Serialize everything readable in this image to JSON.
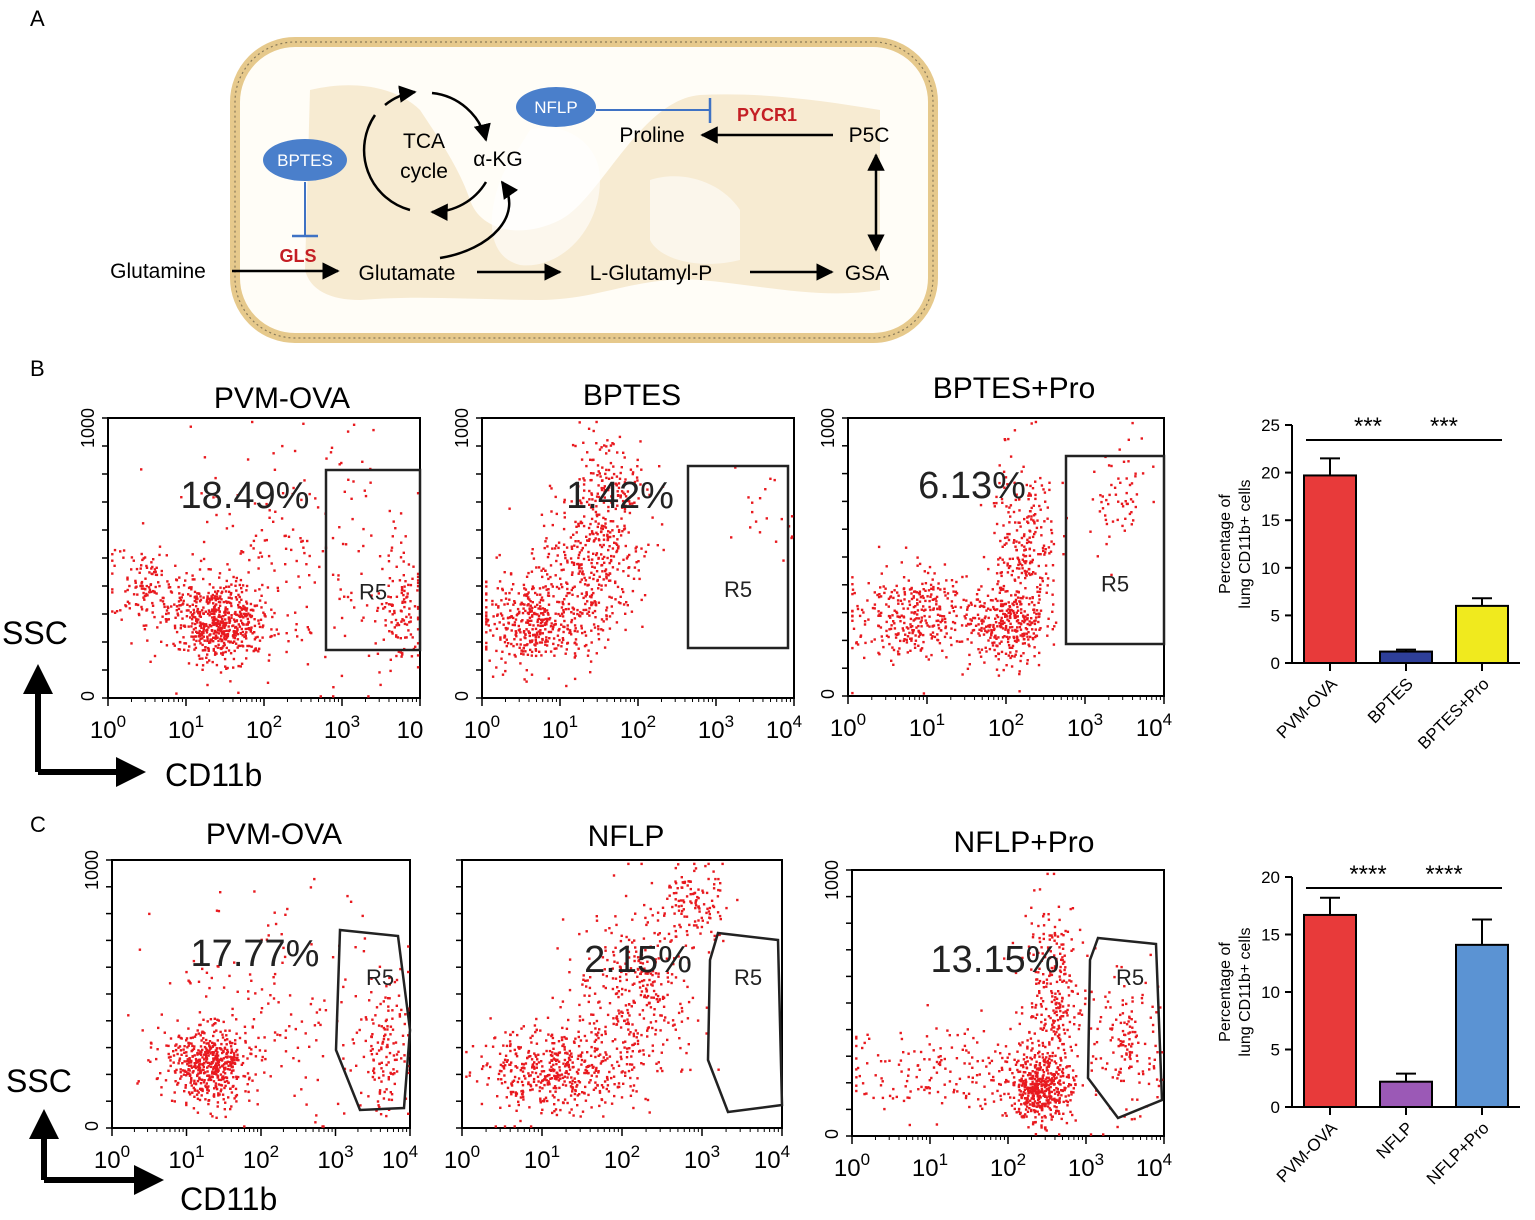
{
  "panel_labels": {
    "a": "A",
    "b": "B",
    "c": "C"
  },
  "colors": {
    "dot": "#e8191f",
    "inhibitor": "#3f72c4",
    "enzyme": "#c41e24",
    "mito_fill": "#f3e2c2",
    "bar_red": "#e83a3a",
    "bar_blue": "#2e3f99",
    "bar_yellow": "#f0ea1e",
    "bar_purple": "#9b59b6",
    "bar_lightblue": "#5b93d3"
  },
  "pathway": {
    "tca_line1": "TCA",
    "tca_line2": "cycle",
    "akg": "α-KG",
    "bptes": "BPTES",
    "nflp": "NFLP",
    "gls": "GLS",
    "pycr1": "PYCR1",
    "proline": "Proline",
    "p5c": "P5C",
    "glutamine": "Glutamine",
    "glutamate": "Glutamate",
    "lglutamyl": "L-Glutamyl-P",
    "gsa": "GSA"
  },
  "flow_b": [
    {
      "title": "PVM-OVA",
      "percent": "18.49%",
      "gate": "R5",
      "y_top": "1000",
      "y_zero": "0",
      "x_ticks": [
        "10",
        "10",
        "10",
        "10",
        "10"
      ],
      "x_exps": [
        "0",
        "1",
        "2",
        "3",
        ""
      ]
    },
    {
      "title": "BPTES",
      "percent": "1.42%",
      "gate": "R5",
      "y_top": "1000",
      "y_zero": "0",
      "x_ticks": [
        "10",
        "10",
        "10",
        "10",
        "10"
      ],
      "x_exps": [
        "0",
        "1",
        "2",
        "3",
        "4"
      ]
    },
    {
      "title": "BPTES+Pro",
      "percent": "6.13%",
      "gate": "R5",
      "y_top": "1000",
      "y_zero": "0",
      "x_ticks": [
        "10",
        "10",
        "10",
        "10",
        "10"
      ],
      "x_exps": [
        "0",
        "1",
        "2",
        "3",
        "4"
      ]
    }
  ],
  "flow_c": [
    {
      "title": "PVM-OVA",
      "percent": "17.77%",
      "gate": "R5",
      "y_top": "1000",
      "y_zero": "0",
      "x_ticks": [
        "10",
        "10",
        "10",
        "10",
        "10"
      ],
      "x_exps": [
        "0",
        "1",
        "2",
        "3",
        "4"
      ]
    },
    {
      "title": "NFLP",
      "percent": "2.15%",
      "gate": "R5",
      "y_top": "",
      "y_zero": "",
      "x_ticks": [
        "10",
        "10",
        "10",
        "10",
        "10"
      ],
      "x_exps": [
        "0",
        "1",
        "2",
        "3",
        "4"
      ]
    },
    {
      "title": "NFLP+Pro",
      "percent": "13.15%",
      "gate": "R5",
      "y_top": "1000",
      "y_zero": "0",
      "x_ticks": [
        "10",
        "10",
        "10",
        "10",
        "10"
      ],
      "x_exps": [
        "0",
        "1",
        "2",
        "3",
        "4"
      ]
    }
  ],
  "axes_labels": {
    "ssc": "SSC",
    "cd11b": "CD11b"
  },
  "chart_data": [
    {
      "type": "bar",
      "title": "",
      "ylabel": "Percentage of lung CD11b+ cells",
      "ylabel_line1": "Percentage of",
      "ylabel_line2": "lung CD11b+ cells",
      "xlabel": "",
      "ylim": [
        0,
        25
      ],
      "yticks": [
        0,
        5,
        10,
        15,
        20,
        25
      ],
      "categories": [
        "PVM-OVA",
        "BPTES",
        "BPTES+Pro"
      ],
      "values": [
        19.7,
        1.2,
        6.0
      ],
      "errors": [
        1.8,
        0.2,
        0.8
      ],
      "significance": [
        "***",
        "***"
      ]
    },
    {
      "type": "bar",
      "title": "",
      "ylabel": "Percentage of lung CD11b+ cells",
      "ylabel_line1": "Percentage of",
      "ylabel_line2": "lung CD11b+ cells",
      "xlabel": "",
      "ylim": [
        0,
        20
      ],
      "yticks": [
        0,
        5,
        10,
        15,
        20
      ],
      "categories": [
        "PVM-OVA",
        "NFLP",
        "NFLP+Pro"
      ],
      "values": [
        16.7,
        2.2,
        14.1
      ],
      "errors": [
        1.5,
        0.7,
        2.2
      ],
      "significance": [
        "****",
        "****"
      ]
    }
  ]
}
